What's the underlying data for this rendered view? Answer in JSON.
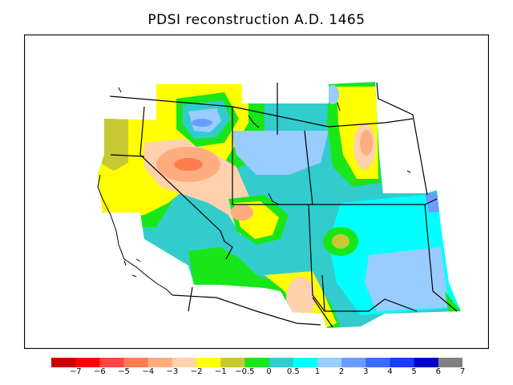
{
  "title": "PDSI reconstruction A.D. 1465",
  "legend": {
    "colors": [
      "#cc0000",
      "#ff0000",
      "#ff4545",
      "#ff7c4f",
      "#ffad80",
      "#ffd2ad",
      "#ffff00",
      "#c8c832",
      "#19e619",
      "#33cccc",
      "#00ffff",
      "#99ccff",
      "#6b9cff",
      "#3a6cff",
      "#1a3cff",
      "#0000cc",
      "#808080"
    ],
    "labels": [
      "−7",
      "−6",
      "−5",
      "−4",
      "−3",
      "−2",
      "−1",
      "−0.5",
      "0",
      "0.5",
      "1",
      "2",
      "3",
      "4",
      "5",
      "6",
      "7"
    ]
  },
  "map": {
    "variable": "PDSI",
    "year": "1465"
  }
}
